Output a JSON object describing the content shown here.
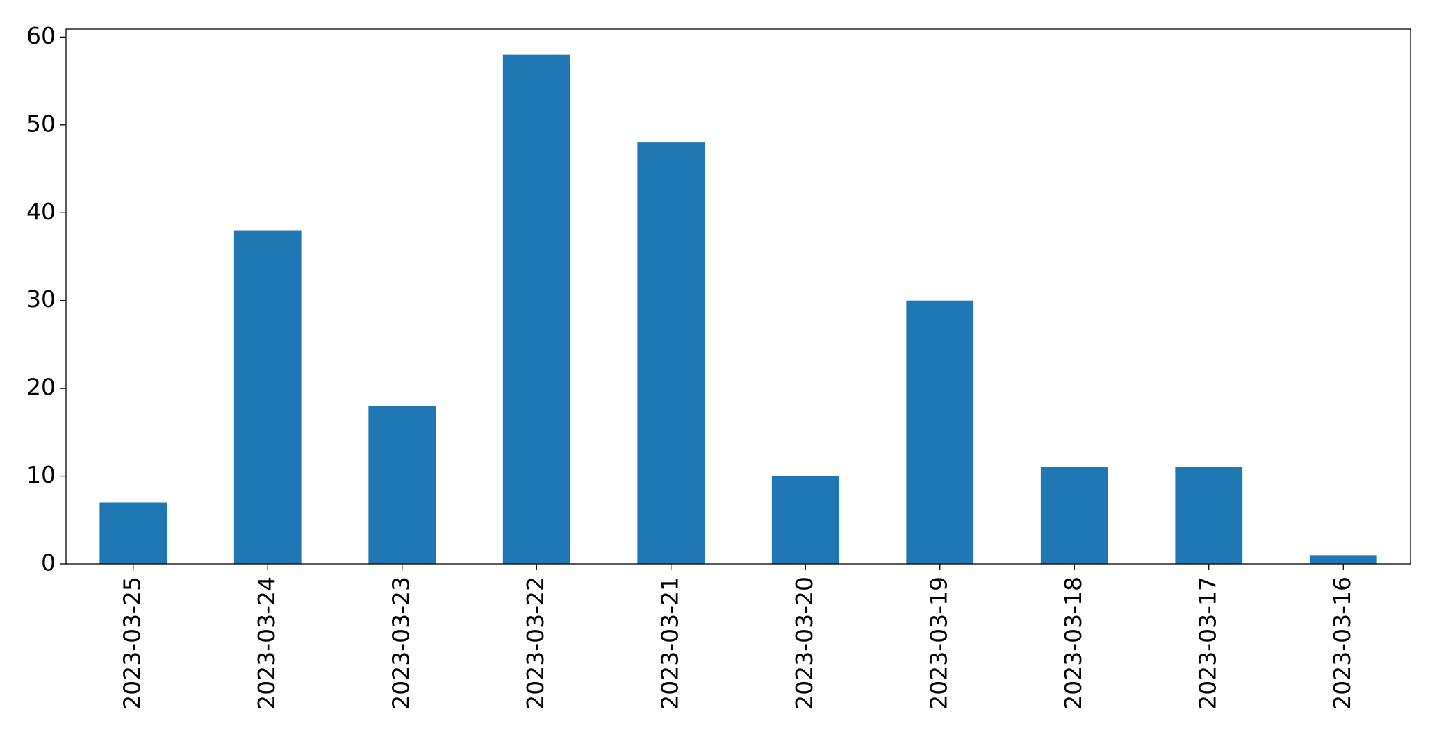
{
  "chart_data": {
    "type": "bar",
    "categories": [
      "2023-03-25",
      "2023-03-24",
      "2023-03-23",
      "2023-03-22",
      "2023-03-21",
      "2023-03-20",
      "2023-03-19",
      "2023-03-18",
      "2023-03-17",
      "2023-03-16"
    ],
    "values": [
      7,
      38,
      18,
      58,
      48,
      10,
      30,
      11,
      11,
      1
    ],
    "color": "#1f77b4",
    "ylim": [
      0,
      60.9
    ],
    "yticks": [
      0,
      10,
      20,
      30,
      40,
      50,
      60
    ],
    "grid": false
  }
}
